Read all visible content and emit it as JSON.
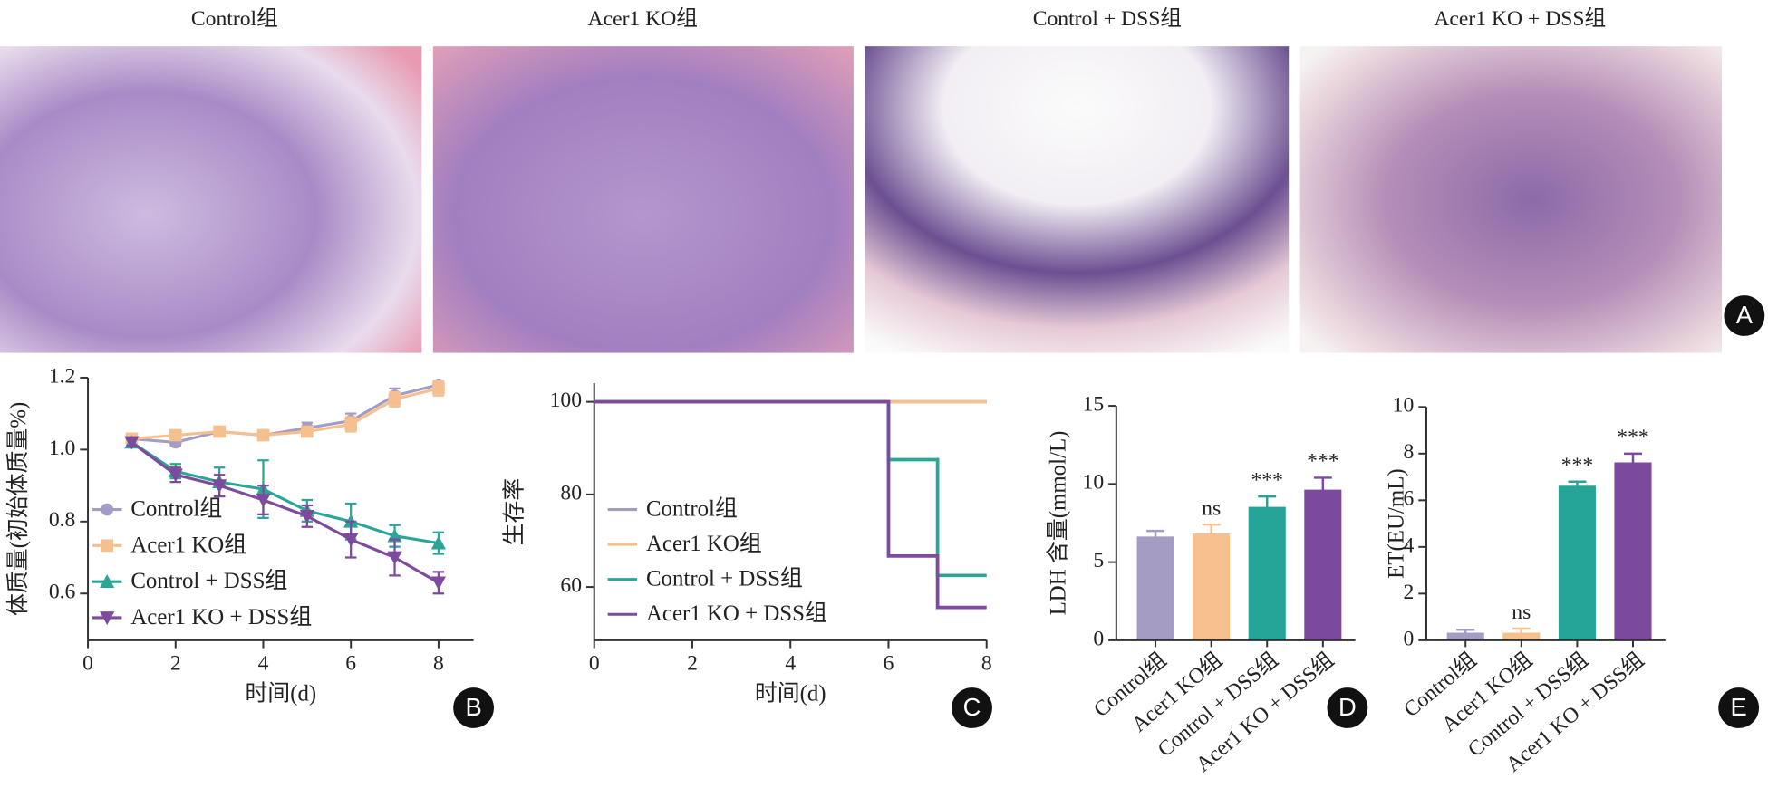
{
  "histology": {
    "titles": [
      "Control组",
      "Acer1 KO组",
      "Control + DSS组",
      "Acer1 KO + DSS组"
    ],
    "label": "A"
  },
  "chart_data": [
    {
      "type": "line",
      "label": "B",
      "xlabel": "时间(d)",
      "ylabel": "体质量(初始体质量%)",
      "x": [
        1,
        2,
        3,
        4,
        5,
        6,
        7,
        8
      ],
      "xlim": [
        0,
        8.8
      ],
      "xticks": [
        0,
        2,
        4,
        6,
        8
      ],
      "ylim": [
        0.47,
        1.2
      ],
      "yticks": [
        0.6,
        0.8,
        {
          "value": 1,
          "label": "1.0"
        },
        1.2
      ],
      "series": [
        {
          "name": "Control组",
          "color": "#a59cc4",
          "marker": "circle",
          "values": [
            1.03,
            1.02,
            1.05,
            1.04,
            1.06,
            1.08,
            1.15,
            1.18
          ],
          "errors": [
            0.01,
            0.01,
            0.01,
            0.01,
            0.015,
            0.02,
            0.02,
            0.01
          ]
        },
        {
          "name": "Acer1 KO组",
          "color": "#f5c08e",
          "marker": "square",
          "values": [
            1.03,
            1.04,
            1.05,
            1.04,
            1.05,
            1.07,
            1.14,
            1.17
          ],
          "errors": [
            0.01,
            0.01,
            0.01,
            0.01,
            0.01,
            0.02,
            0.02,
            0.02
          ]
        },
        {
          "name": "Control + DSS组",
          "color": "#2aa596",
          "marker": "triangle-up",
          "values": [
            1.02,
            0.94,
            0.91,
            0.89,
            0.83,
            0.8,
            0.76,
            0.74
          ],
          "errors": [
            0.01,
            0.02,
            0.04,
            0.08,
            0.03,
            0.05,
            0.03,
            0.03
          ]
        },
        {
          "name": "Acer1 KO + DSS组",
          "color": "#7d4a9e",
          "marker": "triangle-down",
          "values": [
            1.02,
            0.93,
            0.9,
            0.86,
            0.815,
            0.75,
            0.7,
            0.63
          ],
          "errors": [
            0.01,
            0.02,
            0.03,
            0.04,
            0.03,
            0.05,
            0.05,
            0.03
          ]
        }
      ]
    },
    {
      "type": "line",
      "step": "post",
      "label": "C",
      "xlabel": "时间(d)",
      "ylabel": "生存率",
      "x": [
        0,
        6,
        7,
        8
      ],
      "xlim": [
        0,
        8
      ],
      "xticks": [
        0,
        2,
        4,
        6,
        8
      ],
      "ylim": [
        48.5,
        104
      ],
      "yticks": [
        60,
        80,
        100
      ],
      "series": [
        {
          "name": "Control组",
          "color": "#a59cc4",
          "values": [
            100,
            100,
            100,
            100
          ]
        },
        {
          "name": "Acer1 KO组",
          "color": "#f5c08e",
          "values": [
            100,
            100,
            100,
            100
          ]
        },
        {
          "name": "Control + DSS组",
          "color": "#2aa596",
          "values": [
            100,
            87.5,
            62.5,
            62.5
          ]
        },
        {
          "name": "Acer1 KO + DSS组",
          "color": "#7d4a9e",
          "values": [
            100,
            66.7,
            55.6,
            55.6
          ]
        }
      ]
    },
    {
      "type": "bar",
      "label": "D",
      "ylabel": "LDH 含量(mmol/L)",
      "categories": [
        "Control组",
        "Acer1 KO组",
        "Control + DSS组",
        "Acer1 KO + DSS组"
      ],
      "values": [
        6.6,
        6.8,
        8.5,
        9.6
      ],
      "errors": [
        0.4,
        0.6,
        0.7,
        0.8
      ],
      "annotations": [
        null,
        "ns",
        "***",
        "***"
      ],
      "colors": [
        "#a59cc4",
        "#f7c08f",
        "#25a597",
        "#7b4a9f"
      ],
      "ylim": [
        0,
        15
      ],
      "yticks": [
        0,
        5,
        10,
        15
      ]
    },
    {
      "type": "bar",
      "label": "E",
      "ylabel": "ET(EU/mL)",
      "categories": [
        "Control组",
        "Acer1 KO组",
        "Control + DSS组",
        "Acer1 KO + DSS组"
      ],
      "values": [
        0.3,
        0.3,
        6.6,
        7.6
      ],
      "errors": [
        0.15,
        0.2,
        0.2,
        0.4
      ],
      "annotations": [
        null,
        "ns",
        "***",
        "***"
      ],
      "colors": [
        "#a59cc4",
        "#f7c08f",
        "#25a597",
        "#7b4a9f"
      ],
      "ylim": [
        0,
        10
      ],
      "yticks": [
        0,
        2,
        4,
        6,
        8,
        10
      ]
    }
  ]
}
